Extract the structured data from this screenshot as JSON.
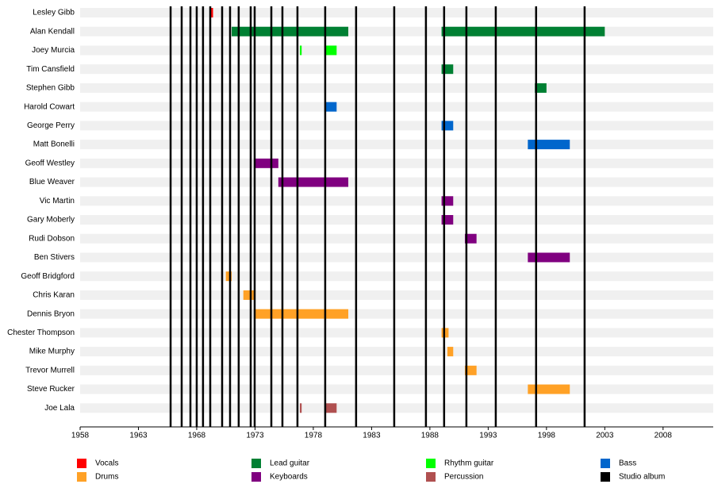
{
  "chart_data": {
    "type": "timeline",
    "xlim": [
      1958,
      2012.3
    ],
    "xticks": [
      1958,
      1963,
      1968,
      1973,
      1978,
      1983,
      1988,
      1993,
      1998,
      2003,
      2008
    ],
    "members": [
      {
        "name": "Lesley Gibb",
        "periods": [
          {
            "role": "Vocals",
            "start": 1969.2,
            "end": 1969.4
          }
        ]
      },
      {
        "name": "Alan Kendall",
        "periods": [
          {
            "role": "Lead guitar",
            "start": 1971,
            "end": 1981
          },
          {
            "role": "Lead guitar",
            "start": 1989,
            "end": 2003
          }
        ]
      },
      {
        "name": "Joey Murcia",
        "periods": [
          {
            "role": "Rhythm guitar",
            "start": 1976.85,
            "end": 1977
          },
          {
            "role": "Rhythm guitar",
            "start": 1979,
            "end": 1980
          }
        ]
      },
      {
        "name": "Tim Cansfield",
        "periods": [
          {
            "role": "Lead guitar",
            "start": 1989,
            "end": 1990
          }
        ]
      },
      {
        "name": "Stephen Gibb",
        "periods": [
          {
            "role": "Lead guitar",
            "start": 1997,
            "end": 1998
          }
        ]
      },
      {
        "name": "Harold Cowart",
        "periods": [
          {
            "role": "Bass",
            "start": 1979,
            "end": 1980
          }
        ]
      },
      {
        "name": "George Perry",
        "periods": [
          {
            "role": "Bass",
            "start": 1989,
            "end": 1990
          }
        ]
      },
      {
        "name": "Matt Bonelli",
        "periods": [
          {
            "role": "Bass",
            "start": 1996.4,
            "end": 2000
          }
        ]
      },
      {
        "name": "Geoff Westley",
        "periods": [
          {
            "role": "Keyboards",
            "start": 1973,
            "end": 1975
          }
        ]
      },
      {
        "name": "Blue Weaver",
        "periods": [
          {
            "role": "Keyboards",
            "start": 1975,
            "end": 1981
          }
        ]
      },
      {
        "name": "Vic Martin",
        "periods": [
          {
            "role": "Keyboards",
            "start": 1989,
            "end": 1990
          }
        ]
      },
      {
        "name": "Gary Moberly",
        "periods": [
          {
            "role": "Keyboards",
            "start": 1989,
            "end": 1990
          }
        ]
      },
      {
        "name": "Rudi Dobson",
        "periods": [
          {
            "role": "Keyboards",
            "start": 1991,
            "end": 1992
          }
        ]
      },
      {
        "name": "Ben Stivers",
        "periods": [
          {
            "role": "Keyboards",
            "start": 1996.4,
            "end": 2000
          }
        ]
      },
      {
        "name": "Geoff Bridgford",
        "periods": [
          {
            "role": "Drums",
            "start": 1970.5,
            "end": 1971
          }
        ]
      },
      {
        "name": "Chris Karan",
        "periods": [
          {
            "role": "Drums",
            "start": 1972,
            "end": 1973
          }
        ]
      },
      {
        "name": "Dennis Bryon",
        "periods": [
          {
            "role": "Drums",
            "start": 1973,
            "end": 1981
          }
        ]
      },
      {
        "name": "Chester Thompson",
        "periods": [
          {
            "role": "Drums",
            "start": 1989,
            "end": 1989.6
          }
        ]
      },
      {
        "name": "Mike Murphy",
        "periods": [
          {
            "role": "Drums",
            "start": 1989.5,
            "end": 1990
          }
        ]
      },
      {
        "name": "Trevor Murrell",
        "periods": [
          {
            "role": "Drums",
            "start": 1991,
            "end": 1992
          }
        ]
      },
      {
        "name": "Steve Rucker",
        "periods": [
          {
            "role": "Drums",
            "start": 1996.4,
            "end": 2000
          }
        ]
      },
      {
        "name": "Joe Lala",
        "periods": [
          {
            "role": "Percussion",
            "start": 1976.85,
            "end": 1977
          },
          {
            "role": "Percussion",
            "start": 1979,
            "end": 1980
          }
        ]
      }
    ],
    "series": [
      {
        "name": "Vocals",
        "color": "#ff0000"
      },
      {
        "name": "Lead guitar",
        "color": "#008033"
      },
      {
        "name": "Rhythm guitar",
        "color": "#00ff00"
      },
      {
        "name": "Bass",
        "color": "#0066cc"
      },
      {
        "name": "Drums",
        "color": "#ffa126"
      },
      {
        "name": "Keyboards",
        "color": "#800080"
      },
      {
        "name": "Percussion",
        "color": "#b05050"
      },
      {
        "name": "Studio album",
        "color": "#000000",
        "values": [
          1965.76,
          1966.71,
          1967.46,
          1968.0,
          1968.54,
          1969.16,
          1970.18,
          1970.86,
          1971.6,
          1972.63,
          1972.97,
          1974.4,
          1975.35,
          1976.64,
          1979.02,
          1981.67,
          1984.94,
          1987.66,
          1989.22,
          1991.13,
          1993.65,
          1997.11,
          2001.27
        ]
      }
    ]
  }
}
